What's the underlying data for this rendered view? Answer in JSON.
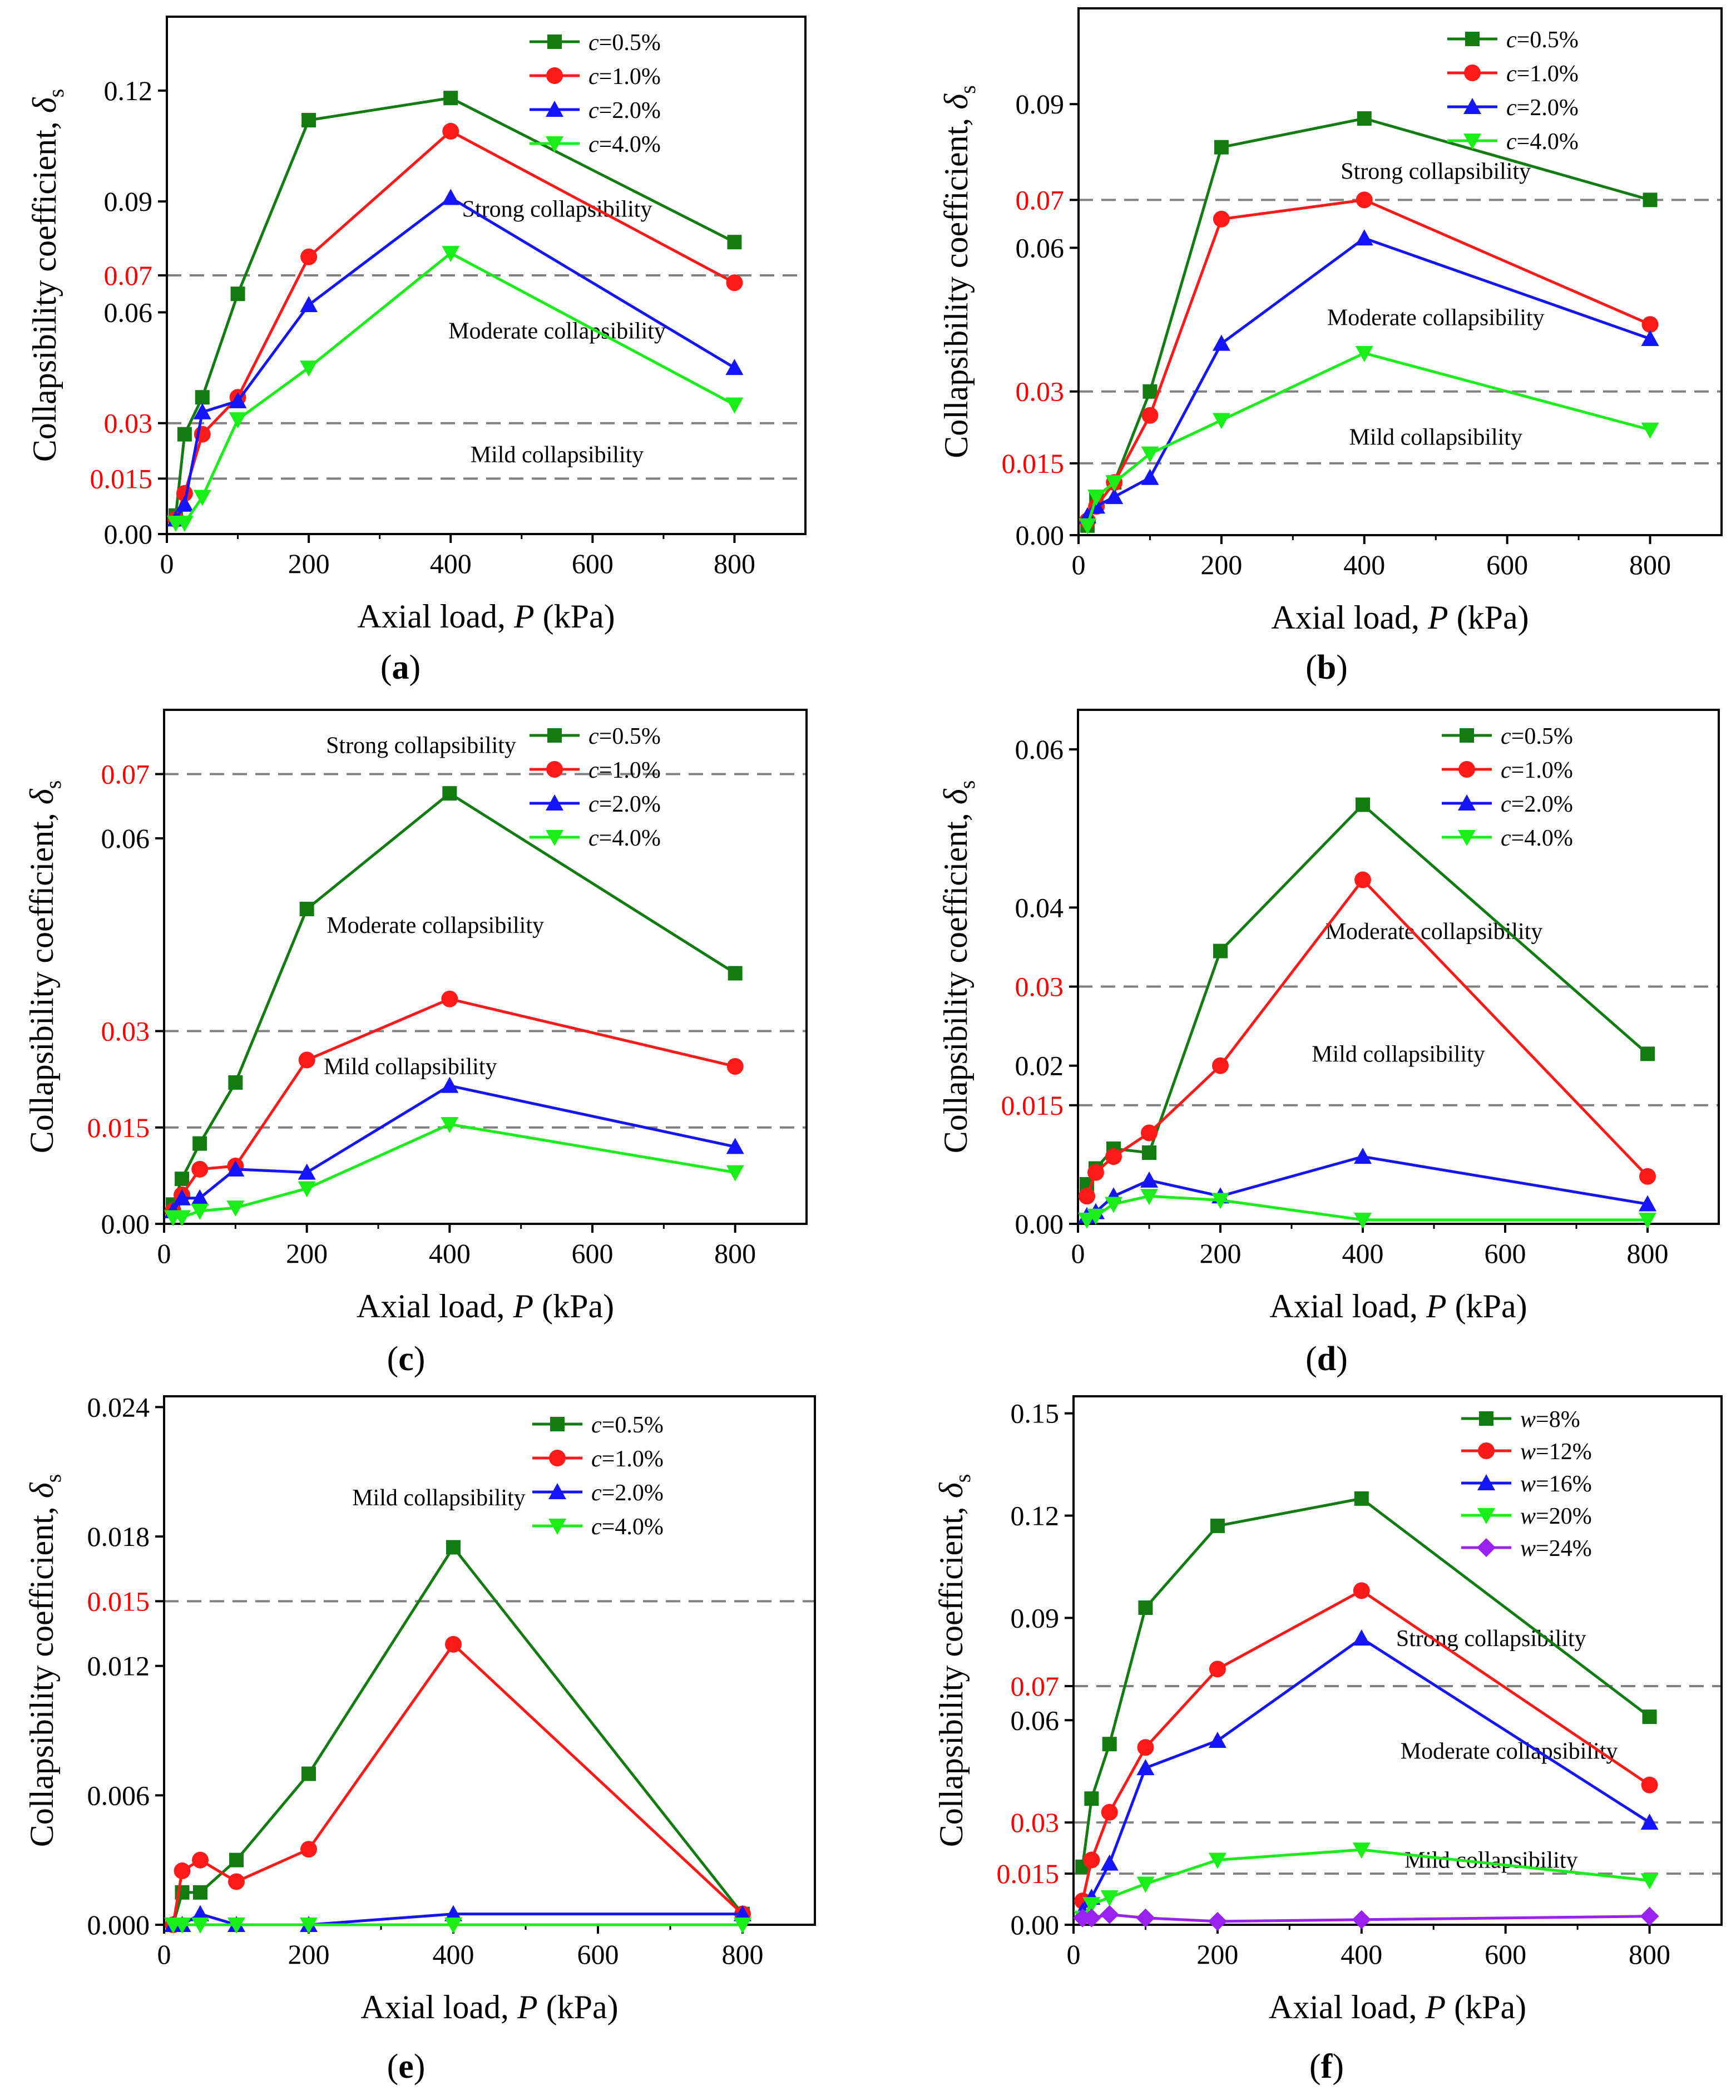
{
  "figure": {
    "panel_labels": [
      "(a)",
      "(b)",
      "(c)",
      "(d)",
      "(e)",
      "(f)"
    ]
  },
  "colors": {
    "c05": "#127c12",
    "c10": "#ff1a1a",
    "c20": "#1414ff",
    "c40": "#19ee19",
    "w24": "#9a22f0",
    "threshold_text": "#ff0000",
    "dash": "#808080"
  },
  "chart_data": [
    {
      "type": "line",
      "panel": "(a)",
      "xlabel": "Axial load, P (kPa)",
      "ylabel": "Collapsibility coefficient, δs",
      "xlim": [
        0,
        900
      ],
      "ylim": [
        0,
        0.14
      ],
      "xticks": [
        0,
        200,
        400,
        600,
        800
      ],
      "yticks": [
        "0.00",
        "0.015",
        "0.03",
        "0.06",
        "0.07",
        "0.09",
        "0.12"
      ],
      "red_ticks": [
        "0.015",
        "0.03",
        "0.07"
      ],
      "thresholds": [
        0.015,
        0.03,
        0.07
      ],
      "legend": "top-right",
      "annotations": [
        {
          "text": "Strong collapsibility",
          "x": 550,
          "y": 0.088
        },
        {
          "text": "Moderate collapsibility",
          "x": 550,
          "y": 0.055
        },
        {
          "text": "Mild collapsibility",
          "x": 550,
          "y": 0.0215
        }
      ],
      "series": [
        {
          "name": "c=0.5%",
          "var": "c",
          "val": "=0.5%",
          "color": "#127c12",
          "marker": "square",
          "x": [
            12.5,
            25,
            50,
            100,
            200,
            400,
            800
          ],
          "y": [
            0.005,
            0.027,
            0.037,
            0.065,
            0.112,
            0.118,
            0.079
          ]
        },
        {
          "name": "c=1.0%",
          "var": "c",
          "val": "=1.0%",
          "color": "#ff1a1a",
          "marker": "circle",
          "x": [
            12.5,
            25,
            50,
            100,
            200,
            400,
            800
          ],
          "y": [
            0.004,
            0.011,
            0.027,
            0.037,
            0.075,
            0.109,
            0.068
          ]
        },
        {
          "name": "c=2.0%",
          "var": "c",
          "val": "=2.0%",
          "color": "#1414ff",
          "marker": "triangle-up",
          "x": [
            12.5,
            25,
            50,
            100,
            200,
            400,
            800
          ],
          "y": [
            0.004,
            0.008,
            0.033,
            0.036,
            0.062,
            0.091,
            0.045
          ]
        },
        {
          "name": "c=4.0%",
          "var": "c",
          "val": "=4.0%",
          "color": "#19ee19",
          "marker": "triangle-down",
          "x": [
            12.5,
            25,
            50,
            100,
            200,
            400,
            800
          ],
          "y": [
            0.003,
            0.003,
            0.01,
            0.031,
            0.045,
            0.076,
            0.035
          ]
        }
      ]
    },
    {
      "type": "line",
      "panel": "(b)",
      "xlabel": "Axial load, P (kPa)",
      "ylabel": "Collapsibility coefficient, δs",
      "xlim": [
        0,
        900
      ],
      "ylim": [
        0,
        0.11
      ],
      "xticks": [
        0,
        200,
        400,
        600,
        800
      ],
      "yticks": [
        "0.00",
        "0.015",
        "0.03",
        "0.06",
        "0.07",
        "0.09"
      ],
      "red_ticks": [
        "0.015",
        "0.03",
        "0.07"
      ],
      "thresholds": [
        0.015,
        0.03,
        0.07
      ],
      "legend": "top-right",
      "annotations": [
        {
          "text": "Strong collapsibility",
          "x": 500,
          "y": 0.076
        },
        {
          "text": "Moderate collapsibility",
          "x": 500,
          "y": 0.0455
        },
        {
          "text": "Mild collapsibility",
          "x": 500,
          "y": 0.0205
        }
      ],
      "series": [
        {
          "name": "c=0.5%",
          "var": "c",
          "val": "=0.5%",
          "color": "#127c12",
          "marker": "square",
          "x": [
            12.5,
            25,
            50,
            100,
            200,
            400,
            800
          ],
          "y": [
            0.002,
            0.008,
            0.011,
            0.03,
            0.081,
            0.087,
            0.07
          ]
        },
        {
          "name": "c=1.0%",
          "var": "c",
          "val": "=1.0%",
          "color": "#ff1a1a",
          "marker": "circle",
          "x": [
            12.5,
            25,
            50,
            100,
            200,
            400,
            800
          ],
          "y": [
            0.003,
            0.006,
            0.011,
            0.025,
            0.066,
            0.07,
            0.044
          ]
        },
        {
          "name": "c=2.0%",
          "var": "c",
          "val": "=2.0%",
          "color": "#1414ff",
          "marker": "triangle-up",
          "x": [
            12.5,
            25,
            50,
            100,
            200,
            400,
            800
          ],
          "y": [
            0.004,
            0.006,
            0.008,
            0.012,
            0.04,
            0.062,
            0.041
          ]
        },
        {
          "name": "c=4.0%",
          "var": "c",
          "val": "=4.0%",
          "color": "#19ee19",
          "marker": "triangle-down",
          "x": [
            12.5,
            25,
            50,
            100,
            200,
            400,
            800
          ],
          "y": [
            0.002,
            0.008,
            0.011,
            0.017,
            0.024,
            0.038,
            0.022
          ]
        }
      ]
    },
    {
      "type": "line",
      "panel": "(c)",
      "xlabel": "Axial load, P (kPa)",
      "ylabel": "Collapsibility coefficient, δs",
      "xlim": [
        0,
        900
      ],
      "ylim": [
        0,
        0.08
      ],
      "xticks": [
        0,
        200,
        400,
        600,
        800
      ],
      "yticks": [
        "0.00",
        "0.015",
        "0.03",
        "0.06",
        "0.07"
      ],
      "red_ticks": [
        "0.015",
        "0.03",
        "0.07"
      ],
      "thresholds": [
        0.015,
        0.03,
        0.07
      ],
      "legend": "top-right",
      "annotations": [
        {
          "text": "Strong collapsibility",
          "x": 360,
          "y": 0.0745
        },
        {
          "text": "Moderate collapsibility",
          "x": 380,
          "y": 0.0465
        },
        {
          "text": "Mild collapsibility",
          "x": 345,
          "y": 0.0245
        }
      ],
      "series": [
        {
          "name": "c=0.5%",
          "var": "c",
          "val": "=0.5%",
          "color": "#127c12",
          "marker": "square",
          "x": [
            12.5,
            25,
            50,
            100,
            200,
            400,
            800
          ],
          "y": [
            0.003,
            0.007,
            0.0125,
            0.022,
            0.049,
            0.067,
            0.039
          ]
        },
        {
          "name": "c=1.0%",
          "var": "c",
          "val": "=1.0%",
          "color": "#ff1a1a",
          "marker": "circle",
          "x": [
            12.5,
            25,
            50,
            100,
            200,
            400,
            800
          ],
          "y": [
            0.002,
            0.0045,
            0.0085,
            0.009,
            0.0255,
            0.035,
            0.0245
          ]
        },
        {
          "name": "c=2.0%",
          "var": "c",
          "val": "=2.0%",
          "color": "#1414ff",
          "marker": "triangle-up",
          "x": [
            12.5,
            25,
            50,
            100,
            200,
            400,
            800
          ],
          "y": [
            0.002,
            0.004,
            0.004,
            0.0085,
            0.008,
            0.0215,
            0.012
          ]
        },
        {
          "name": "c=4.0%",
          "var": "c",
          "val": "=4.0%",
          "color": "#19ee19",
          "marker": "triangle-down",
          "x": [
            12.5,
            25,
            50,
            100,
            200,
            400,
            800
          ],
          "y": [
            0.001,
            0.001,
            0.002,
            0.0025,
            0.0055,
            0.0155,
            0.008
          ]
        }
      ]
    },
    {
      "type": "line",
      "panel": "(d)",
      "xlabel": "Axial load, P (kPa)",
      "ylabel": "Collapsibility coefficient, δs",
      "xlim": [
        0,
        900
      ],
      "ylim": [
        0,
        0.065
      ],
      "xticks": [
        0,
        200,
        400,
        600,
        800
      ],
      "yticks": [
        "0.00",
        "0.015",
        "0.02",
        "0.03",
        "0.04",
        "0.06"
      ],
      "red_ticks": [
        "0.015",
        "0.03"
      ],
      "thresholds": [
        0.015,
        0.03
      ],
      "legend": "top-right",
      "annotations": [
        {
          "text": "Moderate collapsibility",
          "x": 500,
          "y": 0.037
        },
        {
          "text": "Mild collapsibility",
          "x": 450,
          "y": 0.0215
        }
      ],
      "series": [
        {
          "name": "c=0.5%",
          "var": "c",
          "val": "=0.5%",
          "color": "#127c12",
          "marker": "square",
          "x": [
            12.5,
            25,
            50,
            100,
            200,
            400,
            800
          ],
          "y": [
            0.005,
            0.007,
            0.0095,
            0.009,
            0.0345,
            0.053,
            0.0215
          ]
        },
        {
          "name": "c=1.0%",
          "var": "c",
          "val": "=1.0%",
          "color": "#ff1a1a",
          "marker": "circle",
          "x": [
            12.5,
            25,
            50,
            100,
            200,
            400,
            800
          ],
          "y": [
            0.0035,
            0.0065,
            0.0085,
            0.0115,
            0.02,
            0.0435,
            0.006
          ]
        },
        {
          "name": "c=2.0%",
          "var": "c",
          "val": "=2.0%",
          "color": "#1414ff",
          "marker": "triangle-up",
          "x": [
            12.5,
            25,
            50,
            100,
            200,
            400,
            800
          ],
          "y": [
            0.001,
            0.0015,
            0.0035,
            0.0055,
            0.0035,
            0.0085,
            0.0025
          ]
        },
        {
          "name": "c=4.0%",
          "var": "c",
          "val": "=4.0%",
          "color": "#19ee19",
          "marker": "triangle-down",
          "x": [
            12.5,
            25,
            50,
            100,
            200,
            400,
            800
          ],
          "y": [
            0.0005,
            0.001,
            0.0025,
            0.0035,
            0.003,
            0.0005,
            0.0005
          ]
        }
      ]
    },
    {
      "type": "line",
      "panel": "(e)",
      "xlabel": "Axial load, P (kPa)",
      "ylabel": "Collapsibility coefficient, δs",
      "xlim": [
        0,
        900
      ],
      "ylim": [
        0,
        0.0245
      ],
      "xticks": [
        0,
        200,
        400,
        600,
        800
      ],
      "yticks": [
        "0.000",
        "0.006",
        "0.012",
        "0.015",
        "0.018",
        "0.024"
      ],
      "red_ticks": [
        "0.015"
      ],
      "thresholds": [
        0.015
      ],
      "legend": "top-right",
      "annotations": [
        {
          "text": "Mild collapsibility",
          "x": 380,
          "y": 0.0198
        }
      ],
      "series": [
        {
          "name": "c=0.5%",
          "var": "c",
          "val": "=0.5%",
          "color": "#127c12",
          "marker": "square",
          "x": [
            12.5,
            25,
            50,
            100,
            200,
            400,
            800
          ],
          "y": [
            0.0,
            0.0015,
            0.0015,
            0.003,
            0.007,
            0.0175,
            0.0005
          ]
        },
        {
          "name": "c=1.0%",
          "var": "c",
          "val": "=1.0%",
          "color": "#ff1a1a",
          "marker": "circle",
          "x": [
            12.5,
            25,
            50,
            100,
            200,
            400,
            800
          ],
          "y": [
            0.0,
            0.0025,
            0.003,
            0.002,
            0.0035,
            0.013,
            0.0005
          ]
        },
        {
          "name": "c=2.0%",
          "var": "c",
          "val": "=2.0%",
          "color": "#1414ff",
          "marker": "triangle-up",
          "x": [
            12.5,
            25,
            50,
            100,
            200,
            400,
            800
          ],
          "y": [
            0.0,
            0.0,
            0.0005,
            0.0,
            0.0,
            0.0005,
            0.0005
          ]
        },
        {
          "name": "c=4.0%",
          "var": "c",
          "val": "=4.0%",
          "color": "#19ee19",
          "marker": "triangle-down",
          "x": [
            12.5,
            25,
            50,
            100,
            200,
            400,
            800
          ],
          "y": [
            0.0,
            0.0,
            0.0,
            0.0,
            0.0,
            0.0,
            0.0
          ]
        }
      ]
    },
    {
      "type": "line",
      "panel": "(f)",
      "xlabel": "Axial load, P (kPa)",
      "ylabel": "Collapsibility coefficient, δs",
      "xlim": [
        0,
        900
      ],
      "ylim": [
        0,
        0.155
      ],
      "xticks": [
        0,
        200,
        400,
        600,
        800
      ],
      "yticks": [
        "0.00",
        "0.015",
        "0.03",
        "0.06",
        "0.07",
        "0.09",
        "0.12",
        "0.15"
      ],
      "red_ticks": [
        "0.015",
        "0.03",
        "0.07"
      ],
      "thresholds": [
        0.015,
        0.03,
        0.07
      ],
      "legend": "top-right",
      "annotations": [
        {
          "text": "Strong collapsibility",
          "x": 580,
          "y": 0.084
        },
        {
          "text": "Moderate collapsibility",
          "x": 605,
          "y": 0.051
        },
        {
          "text": "Mild collapsibility",
          "x": 580,
          "y": 0.019
        }
      ],
      "series": [
        {
          "name": "w=8%",
          "var": "w",
          "val": "=8%",
          "color": "#127c12",
          "marker": "square",
          "x": [
            12.5,
            25,
            50,
            100,
            200,
            400,
            800
          ],
          "y": [
            0.017,
            0.037,
            0.053,
            0.093,
            0.117,
            0.125,
            0.061
          ]
        },
        {
          "name": "w=12%",
          "var": "w",
          "val": "=12%",
          "color": "#ff1a1a",
          "marker": "circle",
          "x": [
            12.5,
            25,
            50,
            100,
            200,
            400,
            800
          ],
          "y": [
            0.007,
            0.019,
            0.033,
            0.052,
            0.075,
            0.098,
            0.041
          ]
        },
        {
          "name": "w=16%",
          "var": "w",
          "val": "=16%",
          "color": "#1414ff",
          "marker": "triangle-up",
          "x": [
            12.5,
            25,
            50,
            100,
            200,
            400,
            800
          ],
          "y": [
            0.004,
            0.008,
            0.018,
            0.046,
            0.054,
            0.084,
            0.03
          ]
        },
        {
          "name": "w=20%",
          "var": "w",
          "val": "=20%",
          "color": "#19ee19",
          "marker": "triangle-down",
          "x": [
            12.5,
            25,
            50,
            100,
            200,
            400,
            800
          ],
          "y": [
            0.002,
            0.006,
            0.008,
            0.012,
            0.019,
            0.022,
            0.013
          ]
        },
        {
          "name": "w=24%",
          "var": "w",
          "val": "=24%",
          "color": "#9a22f0",
          "marker": "diamond",
          "x": [
            12.5,
            25,
            50,
            100,
            200,
            400,
            800
          ],
          "y": [
            0.002,
            0.002,
            0.003,
            0.002,
            0.001,
            0.0015,
            0.0025
          ]
        }
      ]
    }
  ]
}
